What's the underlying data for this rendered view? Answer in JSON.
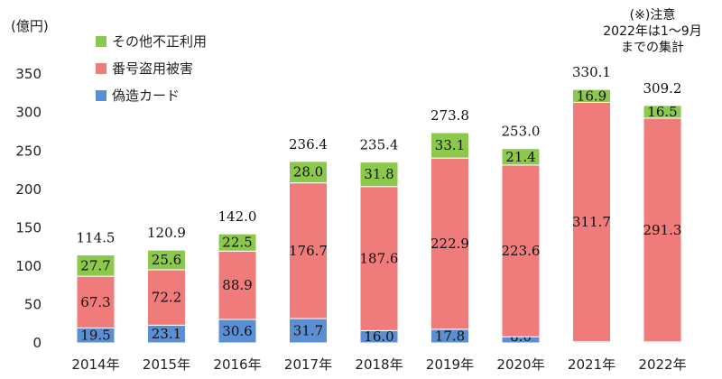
{
  "chart_data": {
    "type": "bar",
    "stacked": true,
    "y_unit_label": "(億円)",
    "ylim": [
      0,
      350
    ],
    "y_ticks": [
      0,
      50,
      100,
      150,
      200,
      250,
      300,
      350
    ],
    "grid": false,
    "legend_position": "top-left",
    "categories": [
      "2014年",
      "2015年",
      "2016年",
      "2017年",
      "2018年",
      "2019年",
      "2020年",
      "2021年",
      "2022年"
    ],
    "series": [
      {
        "name": "偽造カード",
        "color": "#5b8fd1",
        "values": [
          19.5,
          23.1,
          30.6,
          31.7,
          16.0,
          17.8,
          8.0,
          1.5,
          1.4
        ]
      },
      {
        "name": "番号盗用被害",
        "color": "#f07b7b",
        "values": [
          67.3,
          72.2,
          88.9,
          176.7,
          187.6,
          222.9,
          223.6,
          311.7,
          291.3
        ]
      },
      {
        "name": "その他不正利用",
        "color": "#8cc84b",
        "values": [
          27.7,
          25.6,
          22.5,
          28.0,
          31.8,
          33.1,
          21.4,
          16.9,
          16.5
        ]
      }
    ],
    "totals": [
      "114.5",
      "120.9",
      "142.0",
      "236.4",
      "235.4",
      "273.8",
      "253.0",
      "330.1",
      "309.2"
    ],
    "legend_order": [
      2,
      1,
      0
    ],
    "note_lines": [
      "(※)注意",
      "2022年は1～9月",
      "までの集計"
    ]
  }
}
